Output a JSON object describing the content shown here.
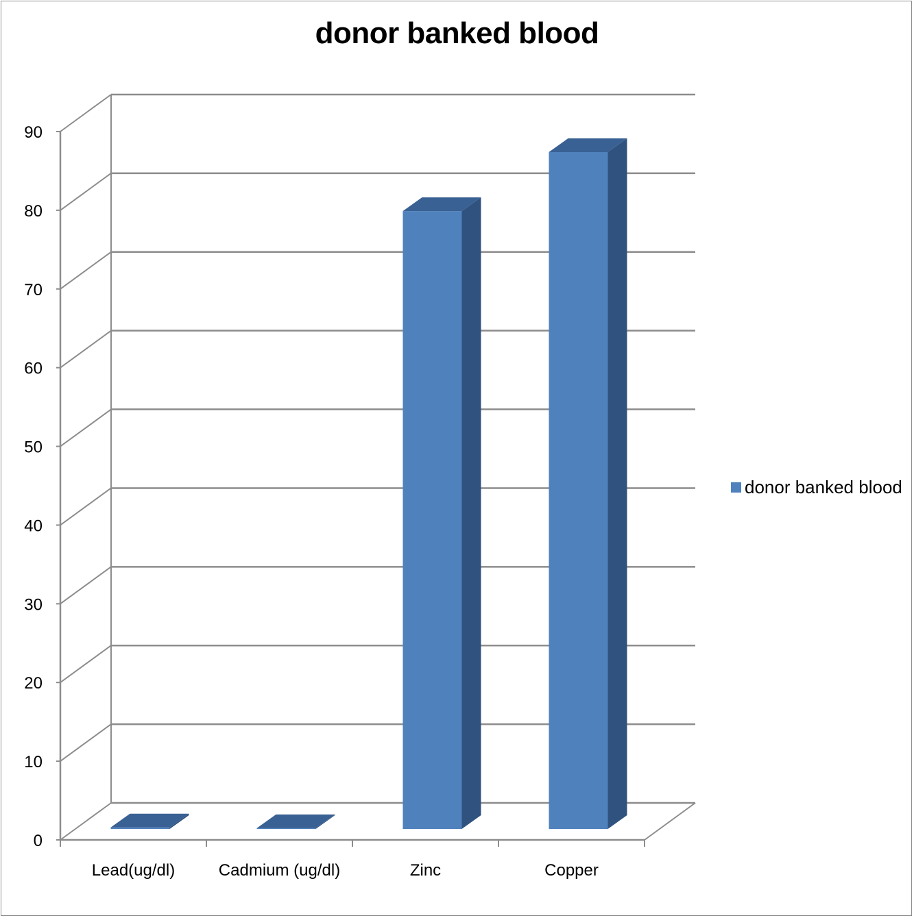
{
  "chart_data": {
    "type": "bar",
    "style": "3d-column",
    "title": "donor banked blood",
    "xlabel": "",
    "ylabel": "",
    "categories": [
      "Lead(ug/dl)",
      "Cadmium (ug/dl)",
      "Zinc",
      "Copper"
    ],
    "series": [
      {
        "name": "donor banked blood",
        "values": [
          0.2,
          0.1,
          78.5,
          86
        ]
      }
    ],
    "ylim": [
      0,
      90
    ],
    "yticks": [
      "0",
      "10",
      "20",
      "30",
      "40",
      "50",
      "60",
      "70",
      "80",
      "90"
    ],
    "grid": true,
    "legend": "right"
  },
  "colors": {
    "bar_front": "#4f81bd",
    "bar_top": "#3a6193",
    "bar_side": "#30527e",
    "grid": "#8c8c8c"
  }
}
